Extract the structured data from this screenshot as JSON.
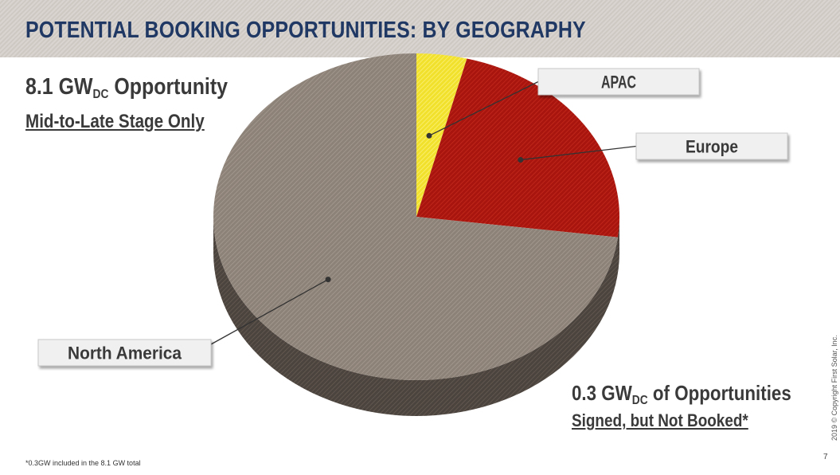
{
  "header": {
    "title": "POTENTIAL BOOKING OPPORTUNITIES: BY GEOGRAPHY"
  },
  "left_label": {
    "main_prefix": "8.1 GW",
    "main_sub": "DC",
    "main_suffix": " Opportunity",
    "stage": "Mid-to-Late Stage Only"
  },
  "right_label": {
    "main_prefix": "0.3 GW",
    "main_sub": "DC",
    "main_suffix": " of Opportunities",
    "status": "Signed, but Not Booked*"
  },
  "footnote": "*0.3GW included in the 8.1 GW total",
  "copyright": "2019 © Copyright First Solar, Inc.",
  "page_number": "7",
  "chart_data": {
    "type": "pie",
    "title": "",
    "unit": "GW DC",
    "total": 8.1,
    "slices": [
      {
        "label": "APAC",
        "value": 0.3,
        "share": 0.04,
        "color": "#f5e63c"
      },
      {
        "label": "Europe",
        "value": 1.9,
        "share": 0.23,
        "color": "#b41a12"
      },
      {
        "label": "North America",
        "value": 5.9,
        "share": 0.73,
        "color": "#8d8278"
      }
    ]
  },
  "colors": {
    "title": "#1f3864",
    "text": "#3a3a3a",
    "header_bg": "#d4cec8"
  }
}
